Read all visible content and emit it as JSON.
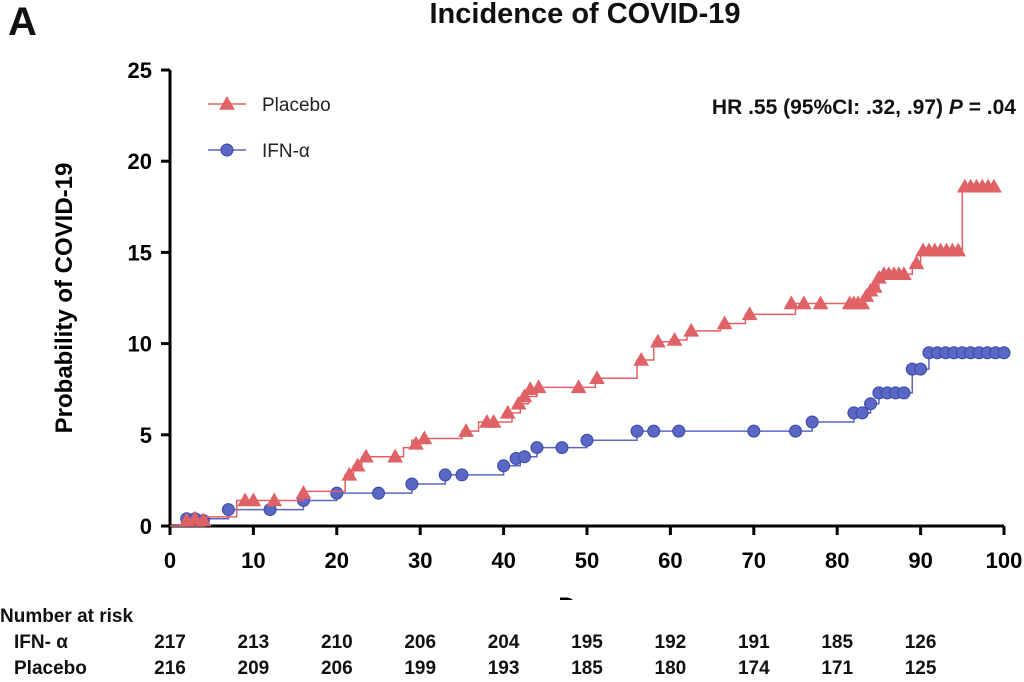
{
  "panel_label": "A",
  "annotation": {
    "hr_text": "HR .55 (95%CI: .32, .97) ",
    "p_label": "P",
    "p_value": " = .04"
  },
  "chart_data": {
    "type": "line",
    "title": "Incidence of  COVID-19",
    "xlabel": "Days",
    "ylabel": "Probability of COVID-19",
    "xlim": [
      0,
      100
    ],
    "ylim": [
      0,
      25
    ],
    "xticks": [
      0,
      10,
      20,
      30,
      40,
      50,
      60,
      70,
      80,
      90,
      100
    ],
    "yticks": [
      0,
      5,
      10,
      15,
      20,
      25
    ],
    "grid": false,
    "legend_position": "top-left",
    "series": [
      {
        "name": "Placebo",
        "color": "#e06266",
        "marker": "triangle",
        "steps": [
          [
            0,
            0
          ],
          [
            4,
            0.5
          ],
          [
            8,
            1.4
          ],
          [
            16,
            1.9
          ],
          [
            21,
            2.8
          ],
          [
            22,
            3.3
          ],
          [
            23,
            3.8
          ],
          [
            28,
            4.3
          ],
          [
            29,
            4.7
          ],
          [
            31,
            4.8
          ],
          [
            35,
            5.2
          ],
          [
            37,
            5.7
          ],
          [
            39,
            5.7
          ],
          [
            41,
            6.2
          ],
          [
            42,
            6.7
          ],
          [
            43,
            7.1
          ],
          [
            44,
            7.6
          ],
          [
            51,
            8.1
          ],
          [
            56,
            9.1
          ],
          [
            58,
            10.1
          ],
          [
            60,
            10.2
          ],
          [
            62,
            10.7
          ],
          [
            66,
            11.1
          ],
          [
            69,
            11.6
          ],
          [
            75,
            12.2
          ],
          [
            82,
            12.2
          ],
          [
            83,
            12.6
          ],
          [
            84,
            13.1
          ],
          [
            85,
            13.8
          ],
          [
            89,
            14.4
          ],
          [
            90,
            15.1
          ],
          [
            95,
            18.6
          ]
        ],
        "censored": [
          [
            2,
            0.3
          ],
          [
            3,
            0.4
          ],
          [
            4,
            0.3
          ],
          [
            9,
            1.4
          ],
          [
            10,
            1.4
          ],
          [
            12.5,
            1.4
          ],
          [
            16,
            1.8
          ],
          [
            21.5,
            2.8
          ],
          [
            22.5,
            3.3
          ],
          [
            23.5,
            3.8
          ],
          [
            27,
            3.8
          ],
          [
            29.5,
            4.5
          ],
          [
            30.5,
            4.8
          ],
          [
            35.5,
            5.2
          ],
          [
            38,
            5.7
          ],
          [
            38.8,
            5.7
          ],
          [
            40.5,
            6.2
          ],
          [
            41.8,
            6.7
          ],
          [
            42.5,
            7.1
          ],
          [
            43.2,
            7.5
          ],
          [
            44.2,
            7.6
          ],
          [
            49,
            7.6
          ],
          [
            51.2,
            8.1
          ],
          [
            56.5,
            9.1
          ],
          [
            58.5,
            10.1
          ],
          [
            60.5,
            10.2
          ],
          [
            62.5,
            10.7
          ],
          [
            66.5,
            11.1
          ],
          [
            69.5,
            11.6
          ],
          [
            74.5,
            12.2
          ],
          [
            76,
            12.2
          ],
          [
            78,
            12.2
          ],
          [
            81.5,
            12.2
          ],
          [
            82,
            12.2
          ],
          [
            82.5,
            12.2
          ],
          [
            83,
            12.2
          ],
          [
            83.5,
            12.6
          ],
          [
            84,
            12.9
          ],
          [
            84.5,
            13.1
          ],
          [
            85,
            13.6
          ],
          [
            85.6,
            13.8
          ],
          [
            86.2,
            13.8
          ],
          [
            86.8,
            13.8
          ],
          [
            87.4,
            13.8
          ],
          [
            88,
            13.8
          ],
          [
            89.5,
            14.4
          ],
          [
            90.3,
            15.1
          ],
          [
            91,
            15.1
          ],
          [
            91.7,
            15.1
          ],
          [
            92.4,
            15.1
          ],
          [
            93.1,
            15.1
          ],
          [
            93.8,
            15.1
          ],
          [
            94.5,
            15.1
          ],
          [
            95.3,
            18.6
          ],
          [
            96,
            18.6
          ],
          [
            96.7,
            18.6
          ],
          [
            97.4,
            18.6
          ],
          [
            98.1,
            18.6
          ],
          [
            98.8,
            18.6
          ]
        ]
      },
      {
        "name": "IFN-α",
        "color": "#5a67c4",
        "marker": "circle",
        "steps": [
          [
            0,
            0
          ],
          [
            2,
            0.4
          ],
          [
            7,
            0.9
          ],
          [
            16,
            1.4
          ],
          [
            20,
            1.8
          ],
          [
            29,
            2.3
          ],
          [
            33,
            2.8
          ],
          [
            40,
            3.3
          ],
          [
            42,
            3.8
          ],
          [
            44,
            4.3
          ],
          [
            50,
            4.7
          ],
          [
            56,
            5.2
          ],
          [
            77,
            5.7
          ],
          [
            82,
            6.2
          ],
          [
            84,
            6.7
          ],
          [
            85,
            7.3
          ],
          [
            89,
            8.6
          ],
          [
            91,
            9.5
          ]
        ],
        "censored": [
          [
            2,
            0.4
          ],
          [
            3,
            0.4
          ],
          [
            4,
            0.3
          ],
          [
            7,
            0.9
          ],
          [
            12,
            0.9
          ],
          [
            16,
            1.4
          ],
          [
            20,
            1.8
          ],
          [
            25,
            1.8
          ],
          [
            29,
            2.3
          ],
          [
            33,
            2.8
          ],
          [
            35,
            2.8
          ],
          [
            40,
            3.3
          ],
          [
            41.5,
            3.7
          ],
          [
            42.5,
            3.8
          ],
          [
            44,
            4.3
          ],
          [
            47,
            4.3
          ],
          [
            50,
            4.7
          ],
          [
            56,
            5.2
          ],
          [
            58,
            5.2
          ],
          [
            61,
            5.2
          ],
          [
            70,
            5.2
          ],
          [
            75,
            5.2
          ],
          [
            77,
            5.7
          ],
          [
            82,
            6.2
          ],
          [
            83,
            6.2
          ],
          [
            84,
            6.7
          ],
          [
            85,
            7.3
          ],
          [
            86,
            7.3
          ],
          [
            87,
            7.3
          ],
          [
            88,
            7.3
          ],
          [
            89,
            8.6
          ],
          [
            90,
            8.6
          ],
          [
            91,
            9.5
          ],
          [
            92,
            9.5
          ],
          [
            93,
            9.5
          ],
          [
            94,
            9.5
          ],
          [
            95,
            9.5
          ],
          [
            96,
            9.5
          ],
          [
            97,
            9.5
          ],
          [
            98,
            9.5
          ],
          [
            99,
            9.5
          ],
          [
            100,
            9.5
          ]
        ]
      }
    ]
  },
  "risk_table": {
    "header": "Number at risk",
    "times": [
      0,
      10,
      20,
      30,
      40,
      50,
      60,
      70,
      80,
      90
    ],
    "rows": [
      {
        "label": "IFN- α",
        "values": [
          "217",
          "213",
          "210",
          "206",
          "204",
          "195",
          "192",
          "191",
          "185",
          "126"
        ]
      },
      {
        "label": "Placebo",
        "values": [
          "216",
          "209",
          "206",
          "199",
          "193",
          "185",
          "180",
          "174",
          "171",
          "125"
        ]
      }
    ]
  }
}
